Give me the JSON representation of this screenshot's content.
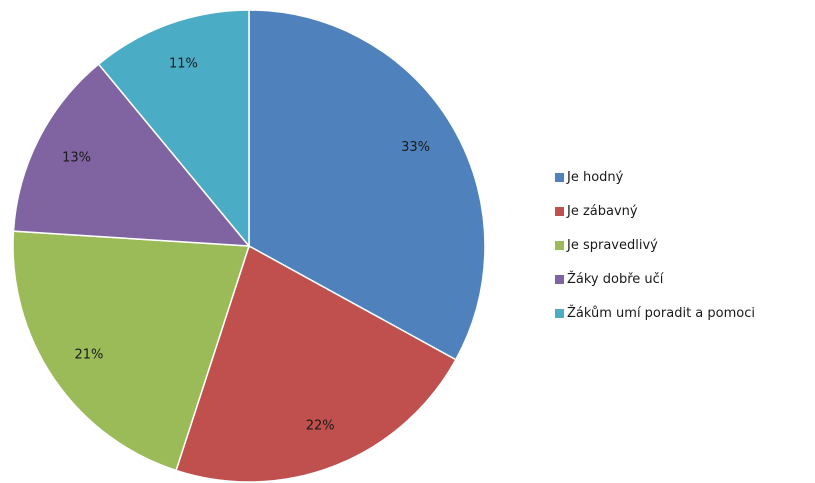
{
  "chart_data": {
    "type": "pie",
    "categories": [
      "Je hodný",
      "Je zábavný",
      "Je spravedlivý",
      "Žáky dobře učí",
      "Žákům umí poradit a pomoci"
    ],
    "values": [
      33,
      22,
      21,
      13,
      11
    ],
    "data_labels": [
      "33%",
      "22%",
      "21%",
      "13%",
      "11%"
    ],
    "colors": [
      "#4f81bd",
      "#c0504d",
      "#9bbb59",
      "#8064a2",
      "#4bacc6"
    ],
    "start_angle": "12 o'clock",
    "direction": "clockwise",
    "legend": "right"
  }
}
